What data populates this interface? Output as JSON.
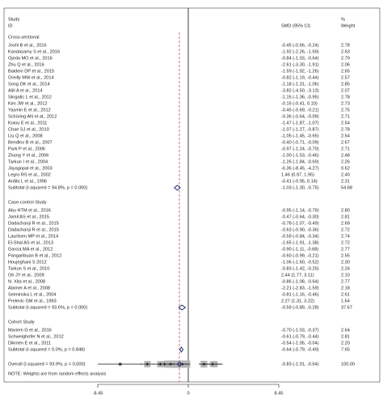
{
  "chart_data": {
    "type": "forest",
    "header": {
      "study": "Study",
      "id": "ID",
      "effect": "SMD (95% CI)",
      "pct": "%",
      "weight": "Weight"
    },
    "xlim": [
      -8.45,
      8.45
    ],
    "xticks": [
      -8.45,
      0,
      8.45
    ],
    "colors": {
      "box": "#b5b5b5",
      "ci": "#111111",
      "point": "#222222",
      "diamond": "#1f2a6b",
      "overall_line": "#c0504d"
    },
    "groups": [
      {
        "name": "Cross-sectional",
        "studies": [
          {
            "study": "Joshi B et al., 2016",
            "ci_label": "-0.45 (-0.66, -0.24)",
            "smd": -0.45,
            "lo": -0.66,
            "hi": -0.24,
            "weight": 2.78,
            "weight_label": "2.78"
          },
          {
            "study": "Kandasamy S et al., 2016",
            "ci_label": "-1.92 (-2.26, -1.59)",
            "smd": -1.92,
            "lo": -2.26,
            "hi": -1.59,
            "weight": 2.63,
            "weight_label": "2.63"
          },
          {
            "study": "Ojeda MO et al., 2016",
            "ci_label": "-0.84 (-1.03, -0.64)",
            "smd": -0.84,
            "lo": -1.03,
            "hi": -0.64,
            "weight": 2.79,
            "weight_label": "2.79"
          },
          {
            "study": "Zhu Q et al., 2016",
            "ci_label": "-2.61 (-3.30, -1.91)",
            "smd": -2.61,
            "lo": -3.3,
            "hi": -1.91,
            "weight": 2.06,
            "weight_label": "2.06"
          },
          {
            "study": "Baldeni DP et al., 2015",
            "ci_label": "-1.59 (-1.92, -1.26)",
            "smd": -1.59,
            "lo": -1.92,
            "hi": -1.26,
            "weight": 2.65,
            "weight_label": "2.65"
          },
          {
            "study": "Oreilly MW et al., 2014",
            "ci_label": "-0.82 (-1.19, -0.44)",
            "smd": -0.82,
            "lo": -1.19,
            "hi": -0.44,
            "weight": 2.57,
            "weight_label": "2.57"
          },
          {
            "study": "Song DK et al., 2014",
            "ci_label": "-1.18 (-1.31, -1.06)",
            "smd": -1.18,
            "lo": -1.31,
            "hi": -1.06,
            "weight": 2.85,
            "weight_label": "2.85"
          },
          {
            "study": "Alili A et al., 2014",
            "ci_label": "-3.82 (-4.50, -3.13)",
            "smd": -3.82,
            "lo": -4.5,
            "hi": -3.13,
            "weight": 2.07,
            "weight_label": "2.07"
          },
          {
            "study": "Skrgatic L et al., 2012",
            "ci_label": "-1.15 (-1.36, -0.95)",
            "smd": -1.15,
            "lo": -1.36,
            "hi": -0.95,
            "weight": 2.78,
            "weight_label": "2.78"
          },
          {
            "study": "Kim JW et al., 2012",
            "ci_label": "-0.15 (-0.41, 0.10)",
            "smd": -0.15,
            "lo": -0.41,
            "hi": 0.1,
            "weight": 2.73,
            "weight_label": "2.73"
          },
          {
            "study": "Yasmin E et al., 2012",
            "ci_label": "-0.45 (-0.69, -0.21)",
            "smd": -0.45,
            "lo": -0.69,
            "hi": -0.21,
            "weight": 2.75,
            "weight_label": "2.75"
          },
          {
            "study": "Schüring AN et al., 2012",
            "ci_label": "-0.36 (-0.64, -0.09)",
            "smd": -0.36,
            "lo": -0.64,
            "hi": -0.09,
            "weight": 2.71,
            "weight_label": "2.71"
          },
          {
            "study": "Koiou E et al., 2011",
            "ci_label": "-1.47 (-1.87, -1.07)",
            "smd": -1.47,
            "lo": -1.87,
            "hi": -1.07,
            "weight": 2.54,
            "weight_label": "2.54"
          },
          {
            "study": "Chae SJ et al., 2010",
            "ci_label": "-1.07 (-1.27, -0.87)",
            "smd": -1.07,
            "lo": -1.27,
            "hi": -0.87,
            "weight": 2.78,
            "weight_label": "2.78"
          },
          {
            "study": "Liu Q et al., 2008",
            "ci_label": "-1.05 (-1.45, -0.65)",
            "smd": -1.05,
            "lo": -1.45,
            "hi": -0.65,
            "weight": 2.54,
            "weight_label": "2.54"
          },
          {
            "study": "Bendlov B et al., 2007",
            "ci_label": "-0.40 (-0.71, -0.09)",
            "smd": -0.4,
            "lo": -0.71,
            "hi": -0.09,
            "weight": 2.67,
            "weight_label": "2.67"
          },
          {
            "study": "Park P et al., 2006",
            "ci_label": "-0.97 (-1.24, -0.70)",
            "smd": -0.97,
            "lo": -1.24,
            "hi": -0.7,
            "weight": 2.71,
            "weight_label": "2.71"
          },
          {
            "study": "Zhang Y et al., 2006",
            "ci_label": "-1.00 (-1.53, -0.46)",
            "smd": -1.0,
            "lo": -1.53,
            "hi": -0.46,
            "weight": 2.48,
            "weight_label": "2.48"
          },
          {
            "study": "Tarkun I et al., 2004",
            "ci_label": "-1.26 (-1.84, -0.69)",
            "smd": -1.26,
            "lo": -1.84,
            "hi": -0.69,
            "weight": 2.26,
            "weight_label": "2.26"
          },
          {
            "study": "Jayagopal et al., 2003",
            "ci_label": "-6.36 (-8.45, -4.27)",
            "smd": -6.36,
            "lo": -8.45,
            "hi": -4.27,
            "weight": 0.62,
            "weight_label": "0.62"
          },
          {
            "study": "Legro RS et al., 2002",
            "ci_label": "1.46 (0.97, 1.95)",
            "smd": 1.46,
            "lo": 0.97,
            "hi": 1.95,
            "weight": 2.4,
            "weight_label": "2.40"
          },
          {
            "study": "Ardila L et al., 1996",
            "ci_label": "-0.41 (-0.95, 0.14)",
            "smd": -0.41,
            "lo": -0.95,
            "hi": 0.14,
            "weight": 2.31,
            "weight_label": "2.31"
          }
        ],
        "subtotal": {
          "study": "Subtotal  (I-squared = 94.8%, p = 0.000)",
          "ci_label": "-1.03 (-1.30, -0.75)",
          "smd": -1.03,
          "lo": -1.3,
          "hi": -0.75,
          "weight": 54.68,
          "weight_label": "54.68"
        }
      },
      {
        "name": "Case-control Study",
        "studies": [
          {
            "study": "Abu HTM et al., 2016",
            "ci_label": "-0.95 (-1.14, -0.76)",
            "smd": -0.95,
            "lo": -1.14,
            "hi": -0.76,
            "weight": 2.8,
            "weight_label": "2.80"
          },
          {
            "study": "Jamil AS et al., 2015",
            "ci_label": "-0.47 (-0.64, -0.30)",
            "smd": -0.47,
            "lo": -0.64,
            "hi": -0.3,
            "weight": 2.81,
            "weight_label": "2.81"
          },
          {
            "study": "Dadachanji R et al., 2015",
            "ci_label": "-0.78 (-1.07, -0.49)",
            "smd": -0.78,
            "lo": -1.07,
            "hi": -0.49,
            "weight": 2.69,
            "weight_label": "2.69"
          },
          {
            "study": "Dadachanji R et al., 2015",
            "ci_label": "-0.63 (-0.90, -0.36)",
            "smd": -0.63,
            "lo": -0.9,
            "hi": -0.36,
            "weight": 2.72,
            "weight_label": "2.72"
          },
          {
            "study": "Laurtisen MP et al., 2014",
            "ci_label": "-0.59 (-0.84, -0.34)",
            "smd": -0.59,
            "lo": -0.84,
            "hi": -0.34,
            "weight": 2.74,
            "weight_label": "2.74"
          },
          {
            "study": "El-Shal AS et al., 2013",
            "ci_label": "-1.65 (-1.91, -1.38)",
            "smd": -1.65,
            "lo": -1.91,
            "hi": -1.38,
            "weight": 2.72,
            "weight_label": "2.72"
          },
          {
            "study": "Garcia MA et al., 2012",
            "ci_label": "-0.90 (-1.11, -0.68)",
            "smd": -0.9,
            "lo": -1.11,
            "hi": -0.68,
            "weight": 2.77,
            "weight_label": "2.77"
          },
          {
            "study": "Pangaribuan B et al., 2012",
            "ci_label": "-0.60 (-0.99, -0.21)",
            "smd": -0.6,
            "lo": -0.99,
            "hi": -0.21,
            "weight": 2.55,
            "weight_label": "2.55"
          },
          {
            "study": "Houjeghani S 2012",
            "ci_label": "-1.06 (-1.60, -0.52)",
            "smd": -1.06,
            "lo": -1.6,
            "hi": -0.52,
            "weight": 2.3,
            "weight_label": "2.30"
          },
          {
            "study": "Tarkun S et al., 2010",
            "ci_label": "-0.83 (-1.42, -0.25)",
            "smd": -0.83,
            "lo": -1.42,
            "hi": -0.25,
            "weight": 2.24,
            "weight_label": "2.24"
          },
          {
            "study": "Oh JY et al., 2009",
            "ci_label": "2.44 (1.77, 3.11)",
            "smd": 2.44,
            "lo": 1.77,
            "hi": 3.11,
            "weight": 2.1,
            "weight_label": "2.10"
          },
          {
            "study": "N. Xita et al., 2008",
            "ci_label": "-0.86 (-1.08, -0.64)",
            "smd": -0.86,
            "lo": -1.08,
            "hi": -0.64,
            "weight": 2.77,
            "weight_label": "2.77"
          },
          {
            "study": "Atamer A et al., 2008",
            "ci_label": "-2.21 (-2.83, -1.59)",
            "smd": -2.21,
            "lo": -2.83,
            "hi": -1.59,
            "weight": 2.18,
            "weight_label": "2.18"
          },
          {
            "study": "Seiminska L et al., 2004",
            "ci_label": "-0.81 (-1.16, -0.46)",
            "smd": -0.81,
            "lo": -1.16,
            "hi": -0.46,
            "weight": 2.61,
            "weight_label": "2.61"
          },
          {
            "study": "Prelevic GM et al., 1993",
            "ci_label": "2.27 (1.31, 3.22)",
            "smd": 2.27,
            "lo": 1.31,
            "hi": 3.22,
            "weight": 1.64,
            "weight_label": "1.64"
          }
        ],
        "subtotal": {
          "study": "Subtotal  (I-squared = 93.6%, p = 0.000)",
          "ci_label": "-0.59 (-0.89, -0.28)",
          "smd": -0.59,
          "lo": -0.89,
          "hi": -0.28,
          "weight": 37.67,
          "weight_label": "37.67"
        }
      },
      {
        "name": "Cohort Study",
        "studies": [
          {
            "study": "Mariem G et al., 2016",
            "ci_label": "-0.70 (-1.03, -0.37)",
            "smd": -0.7,
            "lo": -1.03,
            "hi": -0.37,
            "weight": 2.64,
            "weight_label": "2.64"
          },
          {
            "study": "Schweighofer N et al., 2012",
            "ci_label": "-0.61 (-0.79, -0.44)",
            "smd": -0.61,
            "lo": -0.79,
            "hi": -0.44,
            "weight": 2.81,
            "weight_label": "2.81"
          },
          {
            "study": "Dikmen E et al., 2011",
            "ci_label": "-0.54 (-1.05, -0.04)",
            "smd": -0.54,
            "lo": -1.05,
            "hi": -0.04,
            "weight": 2.2,
            "weight_label": "2.20"
          }
        ],
        "subtotal": {
          "study": "Subtotal  (I-squared = 0.0%, p = 0.848)",
          "ci_label": "-0.64 (-0.79, -0.49)",
          "smd": -0.64,
          "lo": -0.79,
          "hi": -0.49,
          "weight": 7.65,
          "weight_label": "7.65"
        }
      }
    ],
    "overall": {
      "study": "Overall  (I-squared = 93.9%, p = 0.000)",
      "ci_label": "-0.83 (-1.01, -0.64)",
      "smd": -0.83,
      "lo": -1.01,
      "hi": -0.64,
      "weight": 100,
      "weight_label": "100.00"
    },
    "note": "NOTE: Weights are from random effects analysis"
  }
}
